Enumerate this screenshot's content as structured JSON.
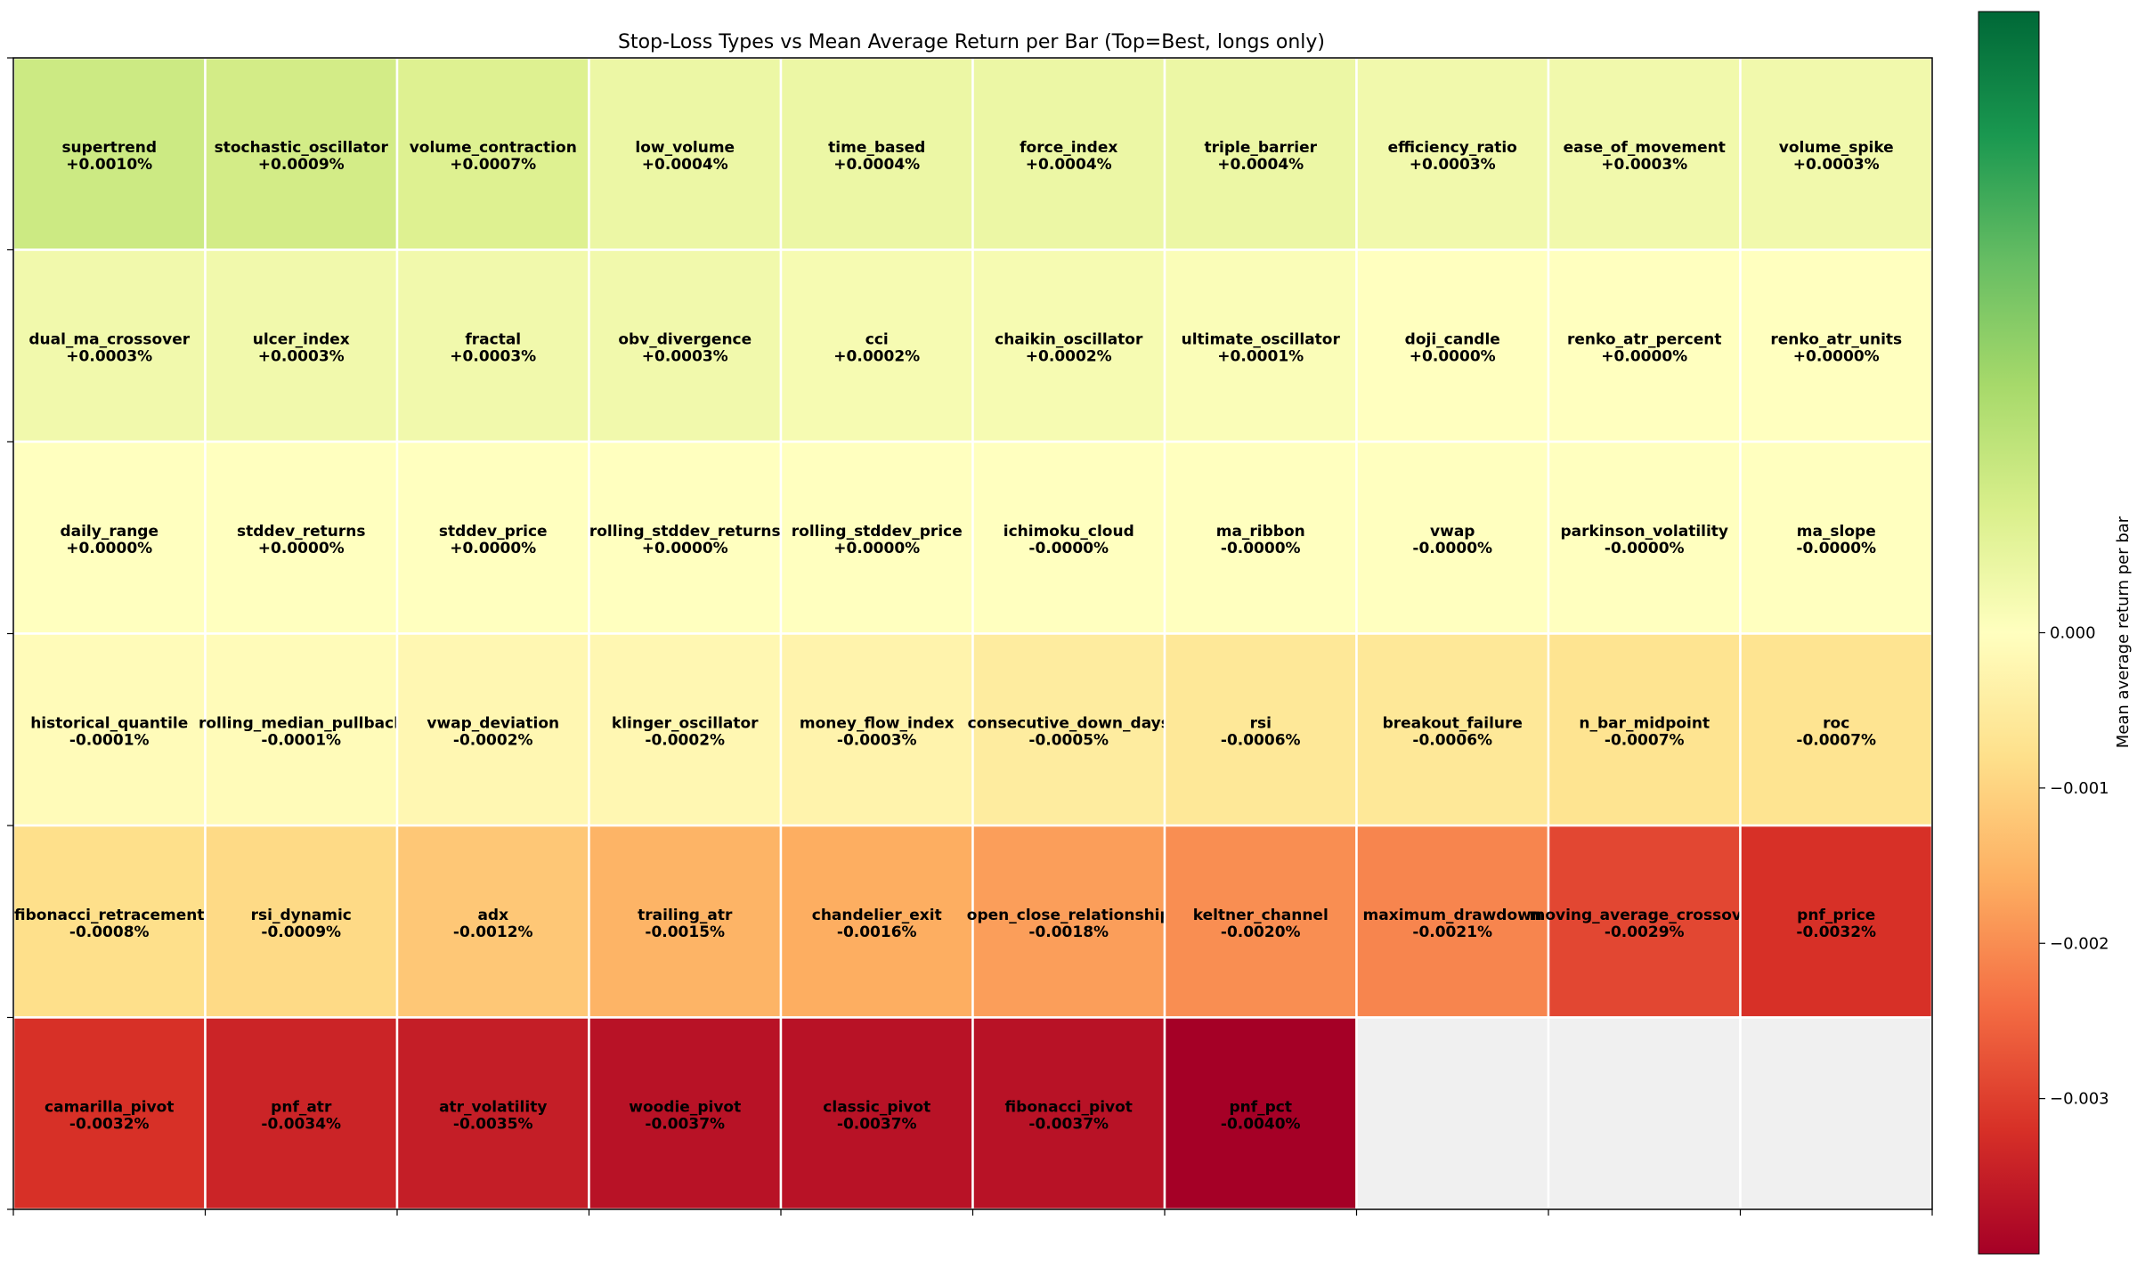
{
  "chart_data": {
    "type": "heatmap",
    "title": "Stop-Loss Types vs Mean Average Return per Bar (Top=Best, longs only)",
    "colorbar_label": "Mean average return per bar",
    "colorbar_ticks": [
      0.0,
      -0.001,
      -0.002,
      -0.003
    ],
    "colorbar_tick_labels": [
      "0.000",
      "−0.001",
      "−0.002",
      "−0.003"
    ],
    "colormap": "RdYlGn",
    "vmin": -0.004,
    "vmax": 0.004,
    "empty_cell_color": "#f0f0f0",
    "grid_line_color": "#ffffff",
    "columns": 10,
    "rows": 6,
    "cells": [
      {
        "name": "supertrend",
        "value": 0.001,
        "label": "+0.0010%"
      },
      {
        "name": "stochastic_oscillator",
        "value": 0.0009,
        "label": "+0.0009%"
      },
      {
        "name": "volume_contraction",
        "value": 0.0007,
        "label": "+0.0007%"
      },
      {
        "name": "low_volume",
        "value": 0.0004,
        "label": "+0.0004%"
      },
      {
        "name": "time_based",
        "value": 0.0004,
        "label": "+0.0004%"
      },
      {
        "name": "force_index",
        "value": 0.0004,
        "label": "+0.0004%"
      },
      {
        "name": "triple_barrier",
        "value": 0.0004,
        "label": "+0.0004%"
      },
      {
        "name": "efficiency_ratio",
        "value": 0.0003,
        "label": "+0.0003%"
      },
      {
        "name": "ease_of_movement",
        "value": 0.0003,
        "label": "+0.0003%"
      },
      {
        "name": "volume_spike",
        "value": 0.0003,
        "label": "+0.0003%"
      },
      {
        "name": "dual_ma_crossover",
        "value": 0.0003,
        "label": "+0.0003%"
      },
      {
        "name": "ulcer_index",
        "value": 0.0003,
        "label": "+0.0003%"
      },
      {
        "name": "fractal",
        "value": 0.0003,
        "label": "+0.0003%"
      },
      {
        "name": "obv_divergence",
        "value": 0.0003,
        "label": "+0.0003%"
      },
      {
        "name": "cci",
        "value": 0.0002,
        "label": "+0.0002%"
      },
      {
        "name": "chaikin_oscillator",
        "value": 0.0002,
        "label": "+0.0002%"
      },
      {
        "name": "ultimate_oscillator",
        "value": 0.0001,
        "label": "+0.0001%"
      },
      {
        "name": "doji_candle",
        "value": 0.0,
        "label": "+0.0000%"
      },
      {
        "name": "renko_atr_percent",
        "value": 0.0,
        "label": "+0.0000%"
      },
      {
        "name": "renko_atr_units",
        "value": 0.0,
        "label": "+0.0000%"
      },
      {
        "name": "daily_range",
        "value": 0.0,
        "label": "+0.0000%"
      },
      {
        "name": "stddev_returns",
        "value": 0.0,
        "label": "+0.0000%"
      },
      {
        "name": "stddev_price",
        "value": 0.0,
        "label": "+0.0000%"
      },
      {
        "name": "rolling_stddev_returns",
        "value": 0.0,
        "label": "+0.0000%"
      },
      {
        "name": "rolling_stddev_price",
        "value": 0.0,
        "label": "+0.0000%"
      },
      {
        "name": "ichimoku_cloud",
        "value": -0.0,
        "label": "-0.0000%"
      },
      {
        "name": "ma_ribbon",
        "value": -0.0,
        "label": "-0.0000%"
      },
      {
        "name": "vwap",
        "value": -0.0,
        "label": "-0.0000%"
      },
      {
        "name": "parkinson_volatility",
        "value": -0.0,
        "label": "-0.0000%"
      },
      {
        "name": "ma_slope",
        "value": -0.0,
        "label": "-0.0000%"
      },
      {
        "name": "historical_quantile",
        "value": -0.0001,
        "label": "-0.0001%"
      },
      {
        "name": "rolling_median_pullback",
        "value": -0.0001,
        "label": "-0.0001%"
      },
      {
        "name": "vwap_deviation",
        "value": -0.0002,
        "label": "-0.0002%"
      },
      {
        "name": "klinger_oscillator",
        "value": -0.0002,
        "label": "-0.0002%"
      },
      {
        "name": "money_flow_index",
        "value": -0.0003,
        "label": "-0.0003%"
      },
      {
        "name": "consecutive_down_days",
        "value": -0.0005,
        "label": "-0.0005%"
      },
      {
        "name": "rsi",
        "value": -0.0006,
        "label": "-0.0006%"
      },
      {
        "name": "breakout_failure",
        "value": -0.0006,
        "label": "-0.0006%"
      },
      {
        "name": "n_bar_midpoint",
        "value": -0.0007,
        "label": "-0.0007%"
      },
      {
        "name": "roc",
        "value": -0.0007,
        "label": "-0.0007%"
      },
      {
        "name": "fibonacci_retracement",
        "value": -0.0008,
        "label": "-0.0008%"
      },
      {
        "name": "rsi_dynamic",
        "value": -0.0009,
        "label": "-0.0009%"
      },
      {
        "name": "adx",
        "value": -0.0012,
        "label": "-0.0012%"
      },
      {
        "name": "trailing_atr",
        "value": -0.0015,
        "label": "-0.0015%"
      },
      {
        "name": "chandelier_exit",
        "value": -0.0016,
        "label": "-0.0016%"
      },
      {
        "name": "open_close_relationship",
        "value": -0.0018,
        "label": "-0.0018%"
      },
      {
        "name": "keltner_channel",
        "value": -0.002,
        "label": "-0.0020%"
      },
      {
        "name": "maximum_drawdown",
        "value": -0.0021,
        "label": "-0.0021%"
      },
      {
        "name": "moving_average_crossover",
        "value": -0.0029,
        "label": "-0.0029%"
      },
      {
        "name": "pnf_price",
        "value": -0.0032,
        "label": "-0.0032%"
      },
      {
        "name": "camarilla_pivot",
        "value": -0.0032,
        "label": "-0.0032%"
      },
      {
        "name": "pnf_atr",
        "value": -0.0034,
        "label": "-0.0034%"
      },
      {
        "name": "atr_volatility",
        "value": -0.0035,
        "label": "-0.0035%"
      },
      {
        "name": "woodie_pivot",
        "value": -0.0037,
        "label": "-0.0037%"
      },
      {
        "name": "classic_pivot",
        "value": -0.0037,
        "label": "-0.0037%"
      },
      {
        "name": "fibonacci_pivot",
        "value": -0.0037,
        "label": "-0.0037%"
      },
      {
        "name": "pnf_pct",
        "value": -0.004,
        "label": "-0.0040%"
      }
    ]
  }
}
